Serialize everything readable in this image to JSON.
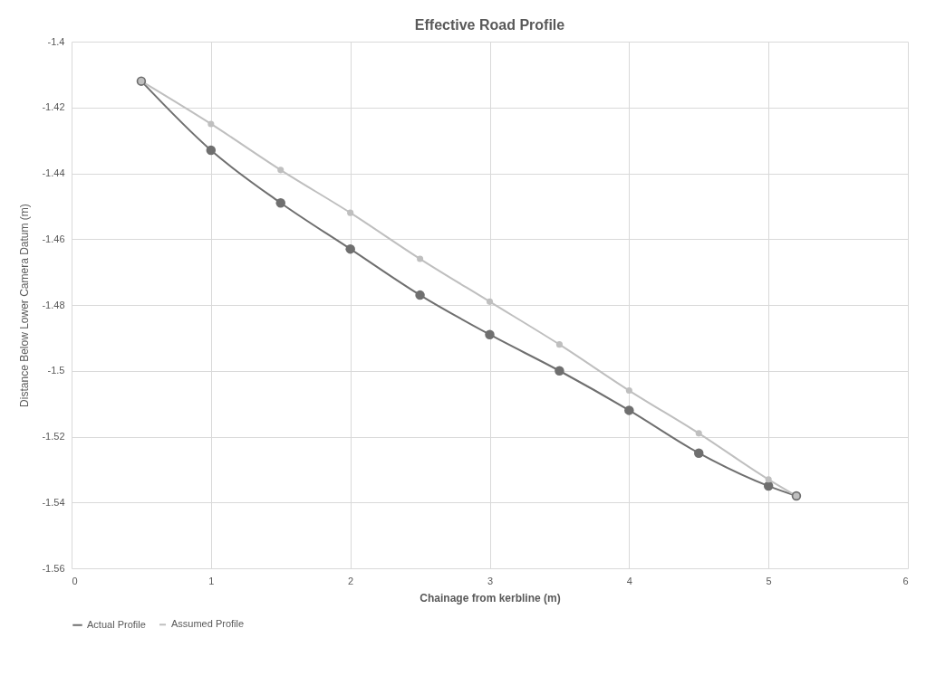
{
  "chart_data": {
    "type": "line",
    "title": "Effective Road Profile",
    "xlabel": "Chainage from kerbline (m)",
    "ylabel": "Distance Below Lower Camera Datum (m)",
    "x": [
      0.5,
      1,
      1.5,
      2,
      2.5,
      3,
      3.5,
      4,
      4.5,
      5,
      5.2
    ],
    "series": [
      {
        "name": "Actual Profile",
        "color": "#6f6f6f",
        "values": [
          -1.412,
          -1.433,
          -1.449,
          -1.463,
          -1.477,
          -1.489,
          -1.5,
          -1.512,
          -1.525,
          -1.535,
          -1.538
        ]
      },
      {
        "name": "Assumed Profile",
        "color": "#bfbfbf",
        "values": [
          -1.412,
          -1.425,
          -1.439,
          -1.452,
          -1.466,
          -1.479,
          -1.492,
          -1.506,
          -1.519,
          -1.533,
          -1.538
        ]
      }
    ],
    "xlim": [
      0,
      6
    ],
    "xticks": [
      0,
      1,
      2,
      3,
      4,
      5,
      6
    ],
    "ylim": [
      -1.56,
      -1.4
    ],
    "yticks": [
      -1.56,
      -1.54,
      -1.52,
      -1.5,
      -1.48,
      -1.46,
      -1.44,
      -1.42,
      -1.4
    ],
    "grid": true,
    "legend": "bottom",
    "marker": "circle",
    "line_style": "solid"
  }
}
